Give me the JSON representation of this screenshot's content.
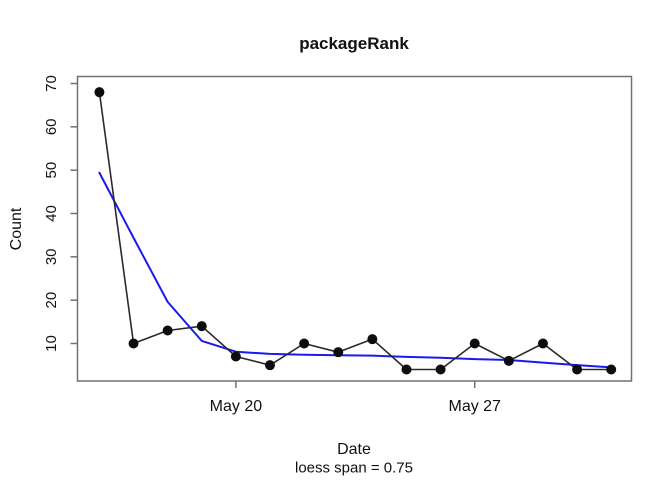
{
  "chart_data": {
    "type": "line",
    "title": "packageRank",
    "xlabel": "Date",
    "ylabel": "Count",
    "subtitle": "loess span = 0.75",
    "n_points": 16,
    "x_dates": [
      "May 16",
      "May 17",
      "May 18",
      "May 19",
      "May 20",
      "May 21",
      "May 22",
      "May 23",
      "May 24",
      "May 25",
      "May 26",
      "May 27",
      "May 28",
      "May 29",
      "May 30",
      "May 31"
    ],
    "series": [
      {
        "name": "count",
        "values": [
          68,
          10,
          13,
          14,
          7,
          5,
          10,
          8,
          11,
          4,
          4,
          10,
          6,
          10,
          4,
          4
        ]
      },
      {
        "name": "loess_fit",
        "values": [
          49.4,
          34.4,
          19.6,
          10.6,
          8.1,
          7.6,
          7.4,
          7.3,
          7.2,
          6.9,
          6.7,
          6.4,
          6.2,
          5.6,
          5.0,
          4.5
        ]
      }
    ],
    "y_ticks": [
      10,
      20,
      30,
      40,
      50,
      60,
      70
    ],
    "x_ticks": [
      {
        "index": 4,
        "label": "May 20"
      },
      {
        "index": 11,
        "label": "May 27"
      }
    ],
    "ylim": [
      1.4,
      71.6
    ],
    "grid": "off",
    "legend": "none",
    "colors": {
      "points": "#0d0d0d",
      "count_line": "#2a2a2a",
      "loess_line": "#1a1aee",
      "axis_box": "#717171",
      "text": "#111111",
      "background": "#ffffff"
    }
  }
}
